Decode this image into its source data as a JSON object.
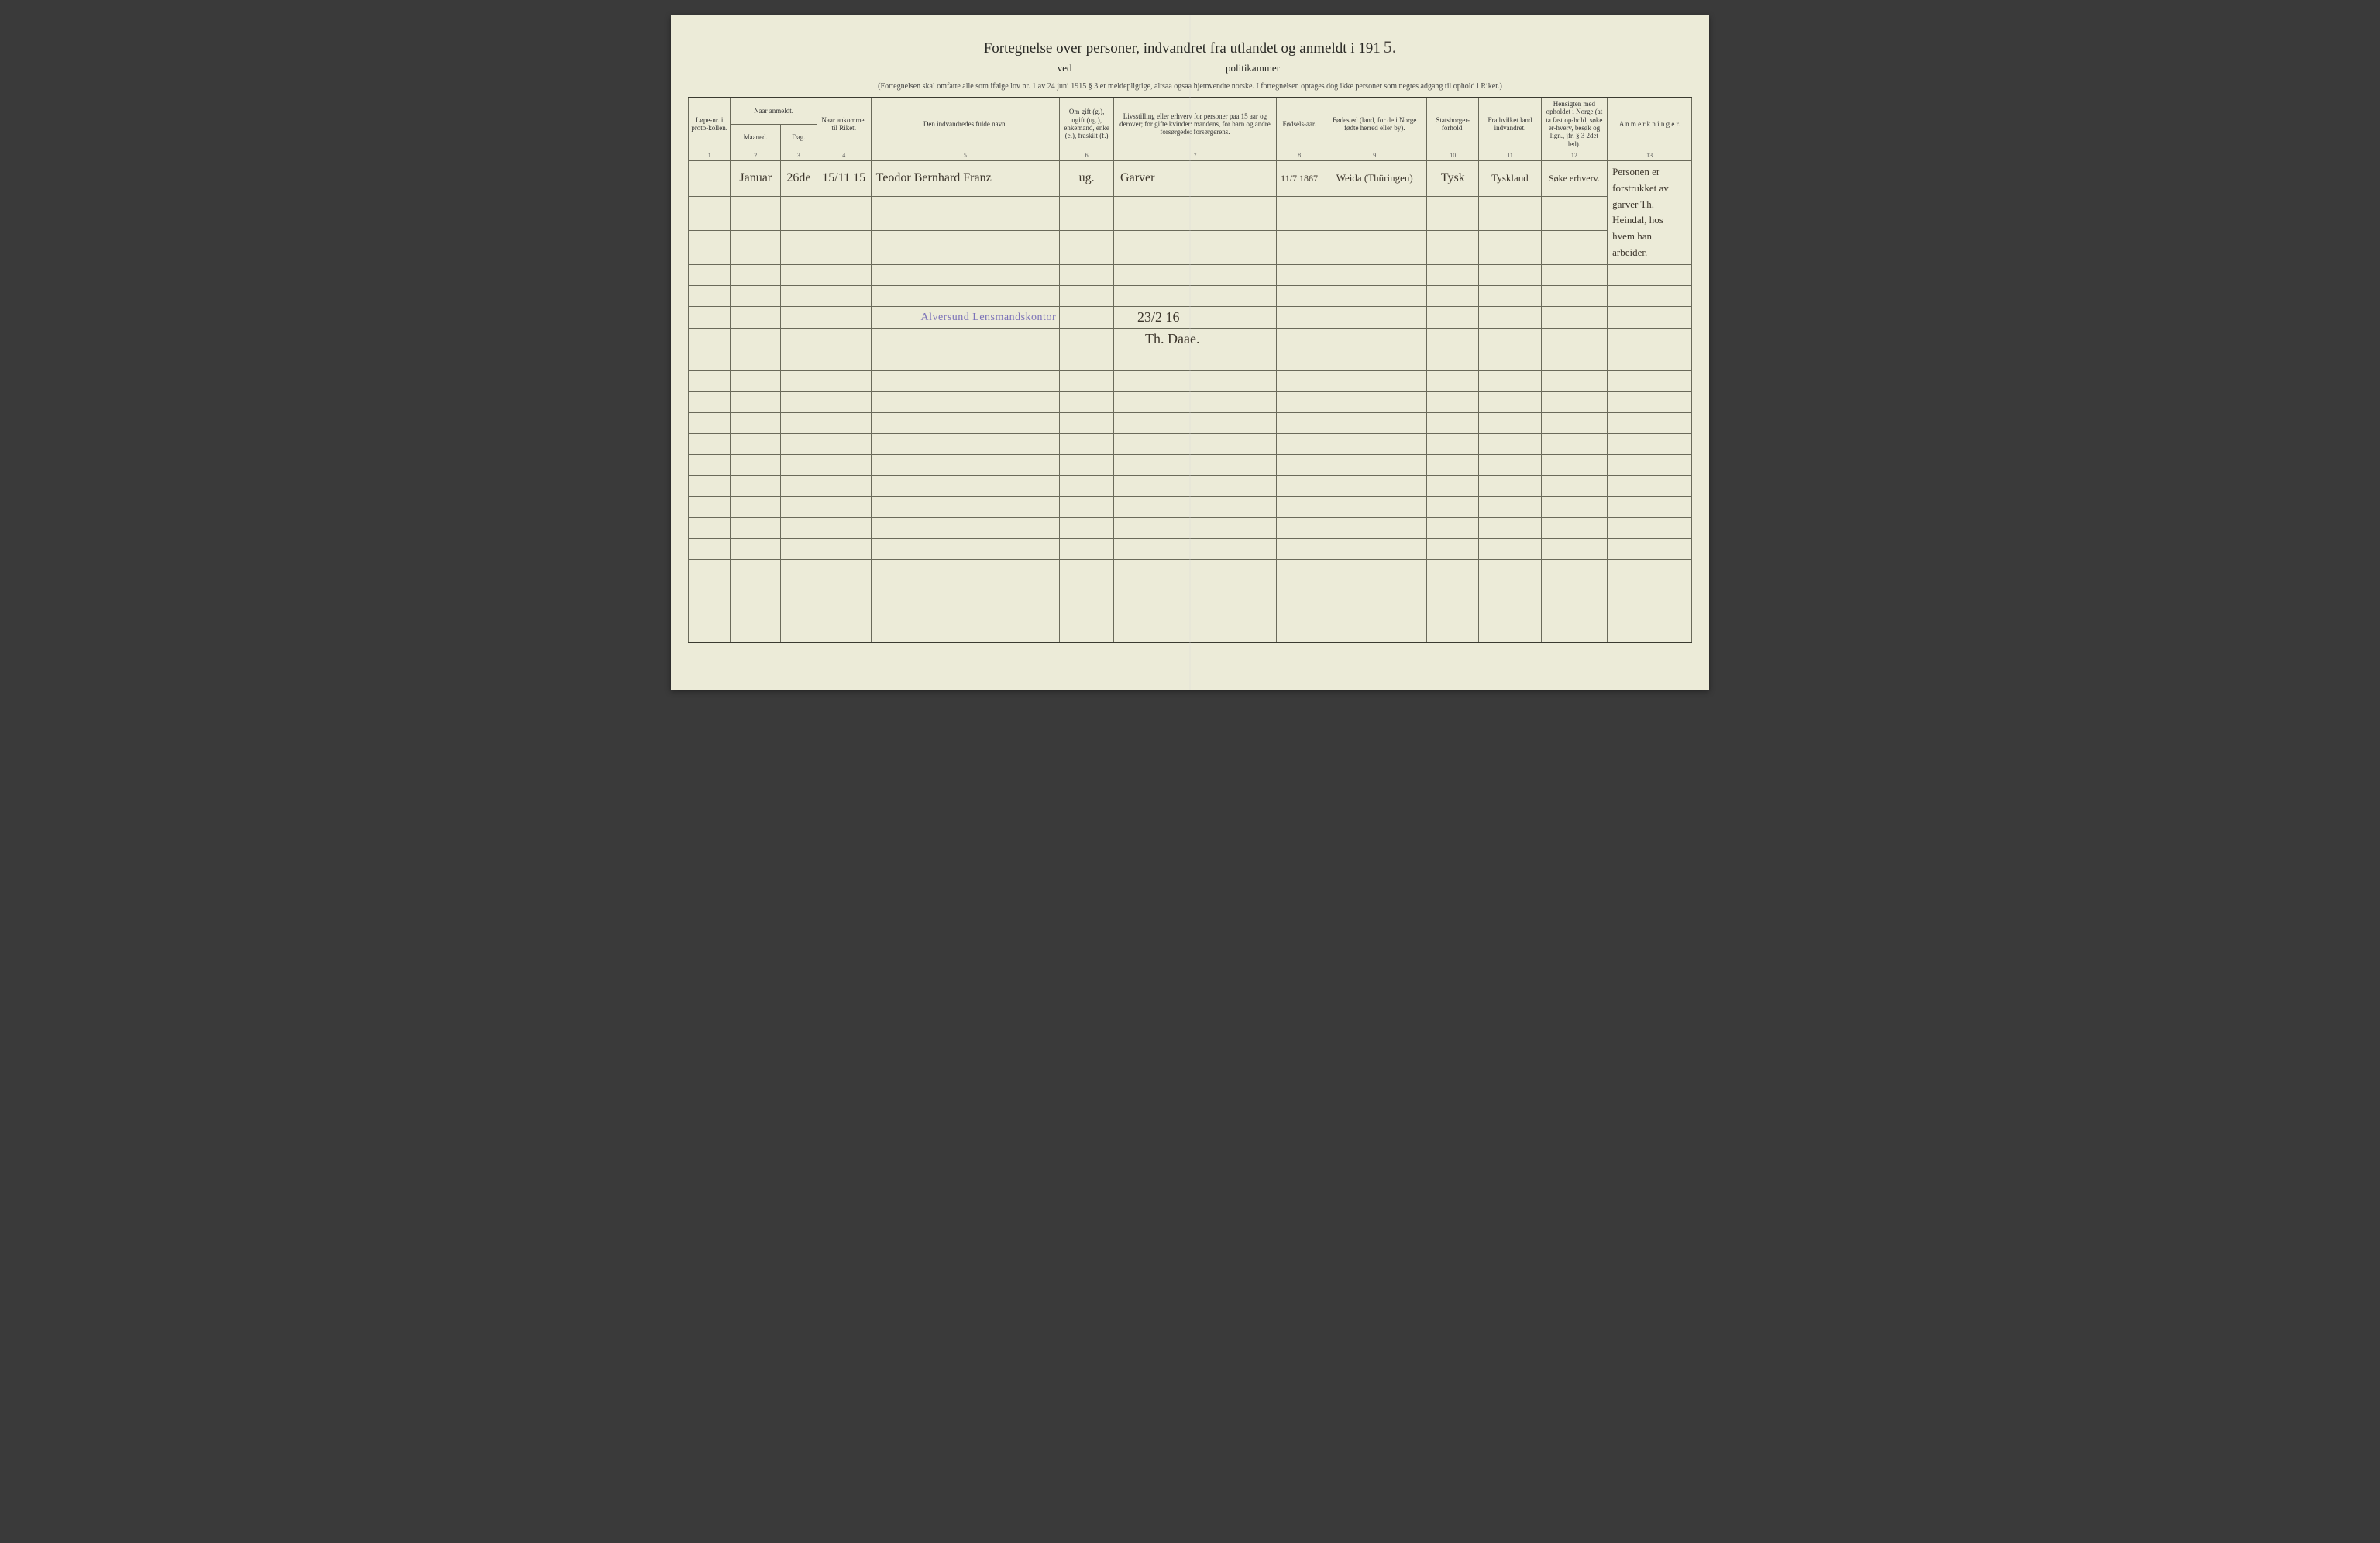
{
  "colors": {
    "paper": "#ecebd8",
    "ink": "#2a2a26",
    "rule": "#6a6a5a",
    "handwriting": "#3d362c",
    "stamp": "#7b72b8",
    "page_bg": "#3a3a3a"
  },
  "typography": {
    "title_fontsize_pt": 19,
    "header_fontsize_pt": 9,
    "note_fontsize_pt": 10,
    "handwriting_fontsize_pt": 16
  },
  "title": {
    "main": "Fortegnelse over personer, indvandret fra utlandet og anmeldt i 191",
    "year_suffix": "5.",
    "sub_left": "ved",
    "sub_right": "politikammer"
  },
  "note": "(Fortegnelsen skal omfatte alle som ifølge lov nr. 1 av 24 juni 1915 § 3 er meldepligtige, altsaa ogsaa hjemvendte norske.  I fortegnelsen optages dog ikke personer som negtes adgang til ophold i Riket.)",
  "table": {
    "col_widths_pct": [
      4.2,
      5.0,
      3.6,
      5.4,
      18.8,
      5.4,
      16.2,
      4.6,
      10.4,
      5.2,
      6.2,
      6.6,
      8.4
    ],
    "header": {
      "c1": "Løpe-nr. i proto-kollen.",
      "c2_group": "Naar anmeldt.",
      "c2a": "Maaned.",
      "c2b": "Dag.",
      "c4": "Naar ankommet til Riket.",
      "c5": "Den indvandredes fulde navn.",
      "c6": "Om gift (g.), ugift (ug.), enkemand, enke (e.), fraskilt (f.)",
      "c7": "Livsstilling eller erhverv for personer paa 15 aar og derover; for gifte kvinder: mandens, for barn og andre forsørgede: forsørgerens.",
      "c8": "Fødsels-aar.",
      "c9": "Fødested (land, for de i Norge fødte herred eller by).",
      "c10": "Statsborger-forhold.",
      "c11": "Fra hvilket land indvandret.",
      "c12": "Hensigten med opholdet i Norge (at ta fast op-hold, søke er-hverv, besøk og lign., jfr. § 3 2det led).",
      "c13": "A n m e r k n i n g e r."
    },
    "colnums": [
      "1",
      "2",
      "3",
      "4",
      "5",
      "6",
      "7",
      "8",
      "9",
      "10",
      "11",
      "12",
      "13"
    ],
    "rows": [
      {
        "c1": "",
        "c2": "Januar",
        "c3": "26de",
        "c4": "15/11 15",
        "c5": "Teodor Bernhard Franz",
        "c6": "ug.",
        "c7": "Garver",
        "c8": "11/7 1867",
        "c9": "Weida (Thüringen)",
        "c10": "Tysk",
        "c11": "Tyskland",
        "c12": "Søke erhverv.",
        "c13": "Personen er forstrukket av garver Th. Heindal, hos hvem han arbeider."
      }
    ],
    "stamp_row": {
      "stamp_text": "Alversund Lensmandskontor",
      "date_text": "23/2 16",
      "signature": "Th. Daae."
    },
    "empty_row_count": 18
  }
}
